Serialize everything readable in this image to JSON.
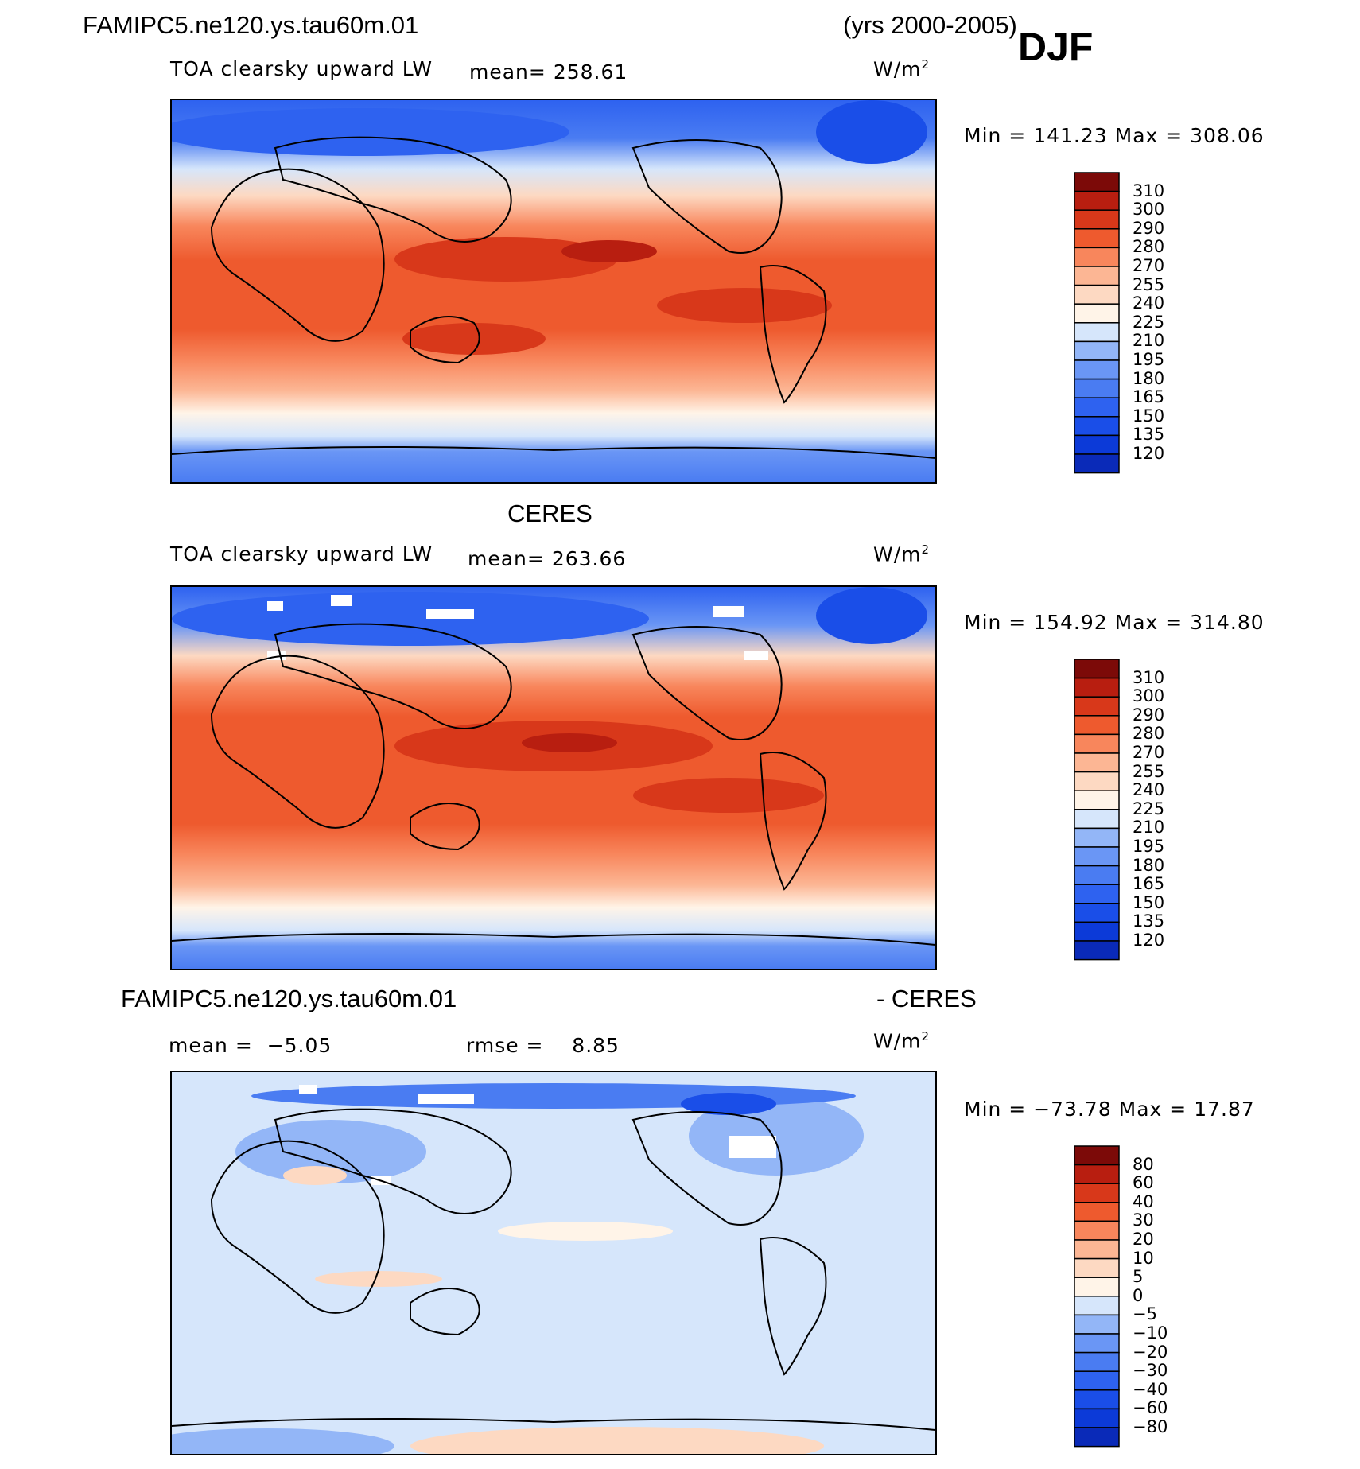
{
  "header": {
    "case_name": "FAMIPC5.ne120.ys.tau60m.01",
    "years": "(yrs 2000-2005)",
    "season": "DJF"
  },
  "colors": {
    "model_palette": [
      "#000a80",
      "#0a2ab8",
      "#0c3ad8",
      "#1a4ee8",
      "#2e62f0",
      "#4a7cf2",
      "#6a96f5",
      "#93b6f7",
      "#d6e6fb",
      "#fff4e8",
      "#fdd9c2",
      "#fcb694",
      "#f8865c",
      "#ee5a2e",
      "#d8381a",
      "#b81e10",
      "#7c0a08"
    ],
    "diff_palette": [
      "#000a80",
      "#0a2ab8",
      "#0c3ad8",
      "#1a4ee8",
      "#2e62f0",
      "#4a7cf2",
      "#6a96f5",
      "#93b6f7",
      "#d6e6fb",
      "#fff4e8",
      "#fdd9c2",
      "#fcb694",
      "#f8865c",
      "#ee5a2e",
      "#d8381a",
      "#b81e10",
      "#7c0a08"
    ]
  },
  "chart_data": [
    {
      "type": "heatmap",
      "title": "FAMIPC5.ne120.ys.tau60m.01",
      "variable": "TOA clearsky upward LW",
      "mean_label": "mean=",
      "mean": "258.61",
      "units": "W/m",
      "units_sup": "2",
      "min_max_text": "Min = 141.23 Max = 308.06",
      "min": 141.23,
      "max": 308.06,
      "contour_levels": [
        "310",
        "300",
        "290",
        "280",
        "270",
        "255",
        "240",
        "225",
        "210",
        "195",
        "180",
        "165",
        "150",
        "135",
        "120"
      ]
    },
    {
      "type": "heatmap",
      "title": "CERES",
      "variable": "TOA clearsky upward LW",
      "mean_label": "mean=",
      "mean": "263.66",
      "units": "W/m",
      "units_sup": "2",
      "min_max_text": "Min = 154.92 Max = 314.80",
      "min": 154.92,
      "max": 314.8,
      "contour_levels": [
        "310",
        "300",
        "290",
        "280",
        "270",
        "255",
        "240",
        "225",
        "210",
        "195",
        "180",
        "165",
        "150",
        "135",
        "120"
      ]
    },
    {
      "type": "heatmap",
      "title_left": "FAMIPC5.ne120.ys.tau60m.01",
      "title_right": "- CERES",
      "mean_label": "mean =",
      "mean": "−5.05",
      "rmse_label": "rmse =",
      "rmse": "8.85",
      "units": "W/m",
      "units_sup": "2",
      "min_max_text": "Min = −73.78 Max = 17.87",
      "min": -73.78,
      "max": 17.87,
      "contour_levels": [
        "80",
        "60",
        "40",
        "30",
        "20",
        "10",
        "5",
        "0",
        "−5",
        "−10",
        "−20",
        "−30",
        "−40",
        "−60",
        "−80"
      ]
    }
  ]
}
